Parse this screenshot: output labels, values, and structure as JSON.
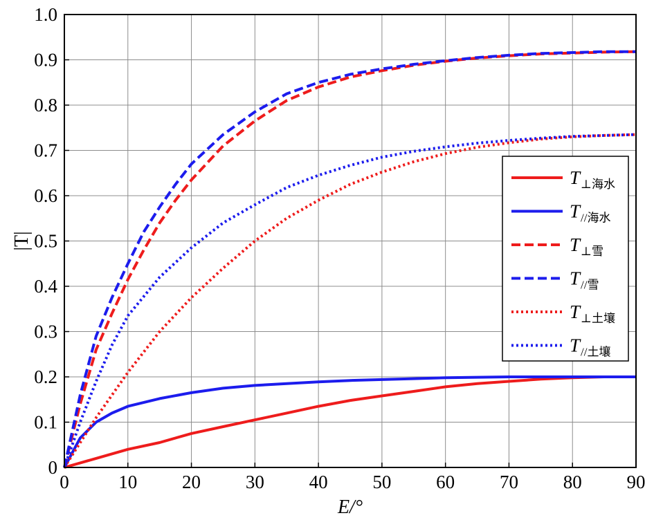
{
  "chart_data": {
    "type": "line",
    "xlabel": "E/°",
    "ylabel": "|T|",
    "xlim": [
      0,
      90
    ],
    "ylim": [
      0,
      1.0
    ],
    "xticks": [
      0,
      10,
      20,
      30,
      40,
      50,
      60,
      70,
      80,
      90
    ],
    "yticks": [
      "0",
      "0.1",
      "0.2",
      "0.3",
      "0.4",
      "0.5",
      "0.6",
      "0.7",
      "0.8",
      "0.9",
      "1.0"
    ],
    "grid": true,
    "legend_position": "right",
    "series": [
      {
        "name": "T⊥海水",
        "symbol": "T",
        "sub": "⊥海水",
        "color": "#ee1c1c",
        "style": "solid",
        "x": [
          0,
          5,
          10,
          15,
          20,
          25,
          30,
          35,
          40,
          45,
          50,
          55,
          60,
          65,
          70,
          75,
          80,
          85,
          90
        ],
        "y": [
          0,
          0.02,
          0.04,
          0.055,
          0.075,
          0.09,
          0.105,
          0.12,
          0.135,
          0.148,
          0.158,
          0.168,
          0.178,
          0.185,
          0.19,
          0.195,
          0.198,
          0.2,
          0.2
        ]
      },
      {
        "name": "T//海水",
        "symbol": "T",
        "sub": "//海水",
        "color": "#1c1ced",
        "style": "solid",
        "x": [
          0,
          2.5,
          5,
          7.5,
          10,
          15,
          20,
          25,
          30,
          35,
          40,
          45,
          50,
          55,
          60,
          70,
          80,
          90
        ],
        "y": [
          0,
          0.065,
          0.1,
          0.12,
          0.135,
          0.152,
          0.165,
          0.175,
          0.181,
          0.185,
          0.189,
          0.192,
          0.194,
          0.196,
          0.198,
          0.2,
          0.2,
          0.2
        ]
      },
      {
        "name": "T⊥雪",
        "symbol": "T",
        "sub": "⊥雪",
        "color": "#ee1c1c",
        "style": "dashed",
        "x": [
          0,
          2.5,
          5,
          7.5,
          10,
          12.5,
          15,
          17.5,
          20,
          25,
          30,
          35,
          40,
          45,
          50,
          55,
          60,
          65,
          70,
          75,
          80,
          85,
          90
        ],
        "y": [
          0,
          0.14,
          0.26,
          0.34,
          0.415,
          0.48,
          0.54,
          0.59,
          0.635,
          0.71,
          0.765,
          0.81,
          0.84,
          0.862,
          0.876,
          0.888,
          0.897,
          0.904,
          0.909,
          0.913,
          0.915,
          0.917,
          0.918
        ]
      },
      {
        "name": "T//雪",
        "symbol": "T",
        "sub": "//雪",
        "color": "#1c1ced",
        "style": "dashed",
        "x": [
          0,
          2.5,
          5,
          7.5,
          10,
          12.5,
          15,
          17.5,
          20,
          25,
          30,
          35,
          40,
          45,
          50,
          55,
          60,
          65,
          70,
          75,
          80,
          85,
          90
        ],
        "y": [
          0,
          0.16,
          0.29,
          0.375,
          0.45,
          0.52,
          0.575,
          0.625,
          0.67,
          0.735,
          0.785,
          0.825,
          0.85,
          0.868,
          0.88,
          0.89,
          0.898,
          0.905,
          0.91,
          0.914,
          0.916,
          0.918,
          0.918
        ]
      },
      {
        "name": "T⊥土壤",
        "symbol": "T",
        "sub": "⊥土壤",
        "color": "#ee1c1c",
        "style": "dotted",
        "x": [
          0,
          5,
          10,
          15,
          20,
          25,
          30,
          35,
          40,
          45,
          50,
          55,
          60,
          65,
          70,
          75,
          80,
          85,
          90
        ],
        "y": [
          0,
          0.11,
          0.21,
          0.3,
          0.375,
          0.44,
          0.5,
          0.55,
          0.59,
          0.625,
          0.652,
          0.675,
          0.693,
          0.707,
          0.717,
          0.725,
          0.73,
          0.733,
          0.735
        ]
      },
      {
        "name": "T//土壤",
        "symbol": "T",
        "sub": "//土壤",
        "color": "#1c1ced",
        "style": "dotted",
        "x": [
          0,
          2.5,
          5,
          7.5,
          10,
          15,
          20,
          25,
          30,
          35,
          40,
          45,
          50,
          55,
          60,
          65,
          70,
          75,
          80,
          85,
          90
        ],
        "y": [
          0,
          0.1,
          0.19,
          0.27,
          0.335,
          0.42,
          0.485,
          0.54,
          0.58,
          0.618,
          0.645,
          0.667,
          0.685,
          0.698,
          0.708,
          0.716,
          0.722,
          0.727,
          0.731,
          0.733,
          0.735
        ]
      }
    ]
  }
}
